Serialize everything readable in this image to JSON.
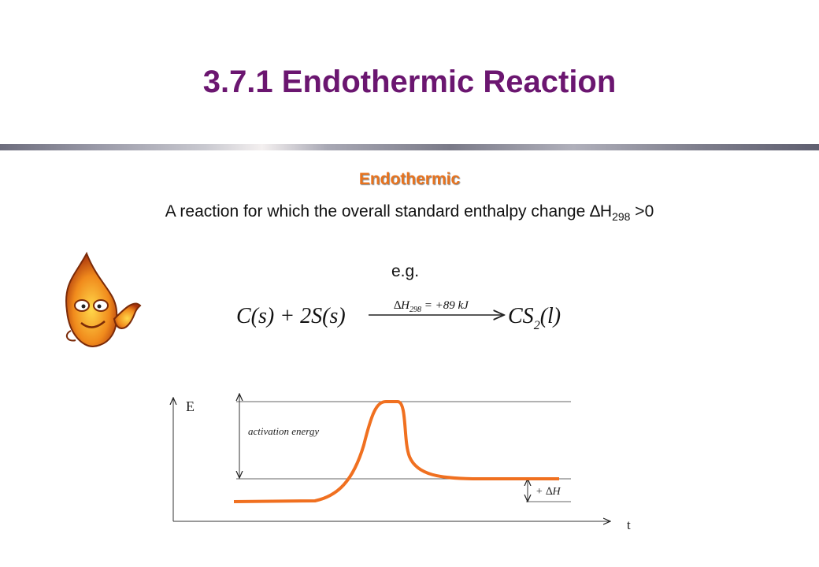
{
  "title": "3.7.1  Endothermic Reaction",
  "subtitle": "Endothermic",
  "definition": {
    "text": "A reaction for which the overall standard enthalpy change ∆H",
    "subscript": "298",
    "suffix": " >0"
  },
  "example_label": "e.g.",
  "equation": {
    "reactants": "C(s) + 2S(s)",
    "product": "CS",
    "product_subscript": "2",
    "product_state": "(l)",
    "arrow_label": "∆H",
    "arrow_label_subscript": "298",
    "arrow_label_suffix": " = +89 kJ"
  },
  "diagram": {
    "y_axis_label": "E",
    "x_axis_label": "t",
    "activation_label": "activation energy",
    "delta_h_label": "+ ∆H"
  }
}
